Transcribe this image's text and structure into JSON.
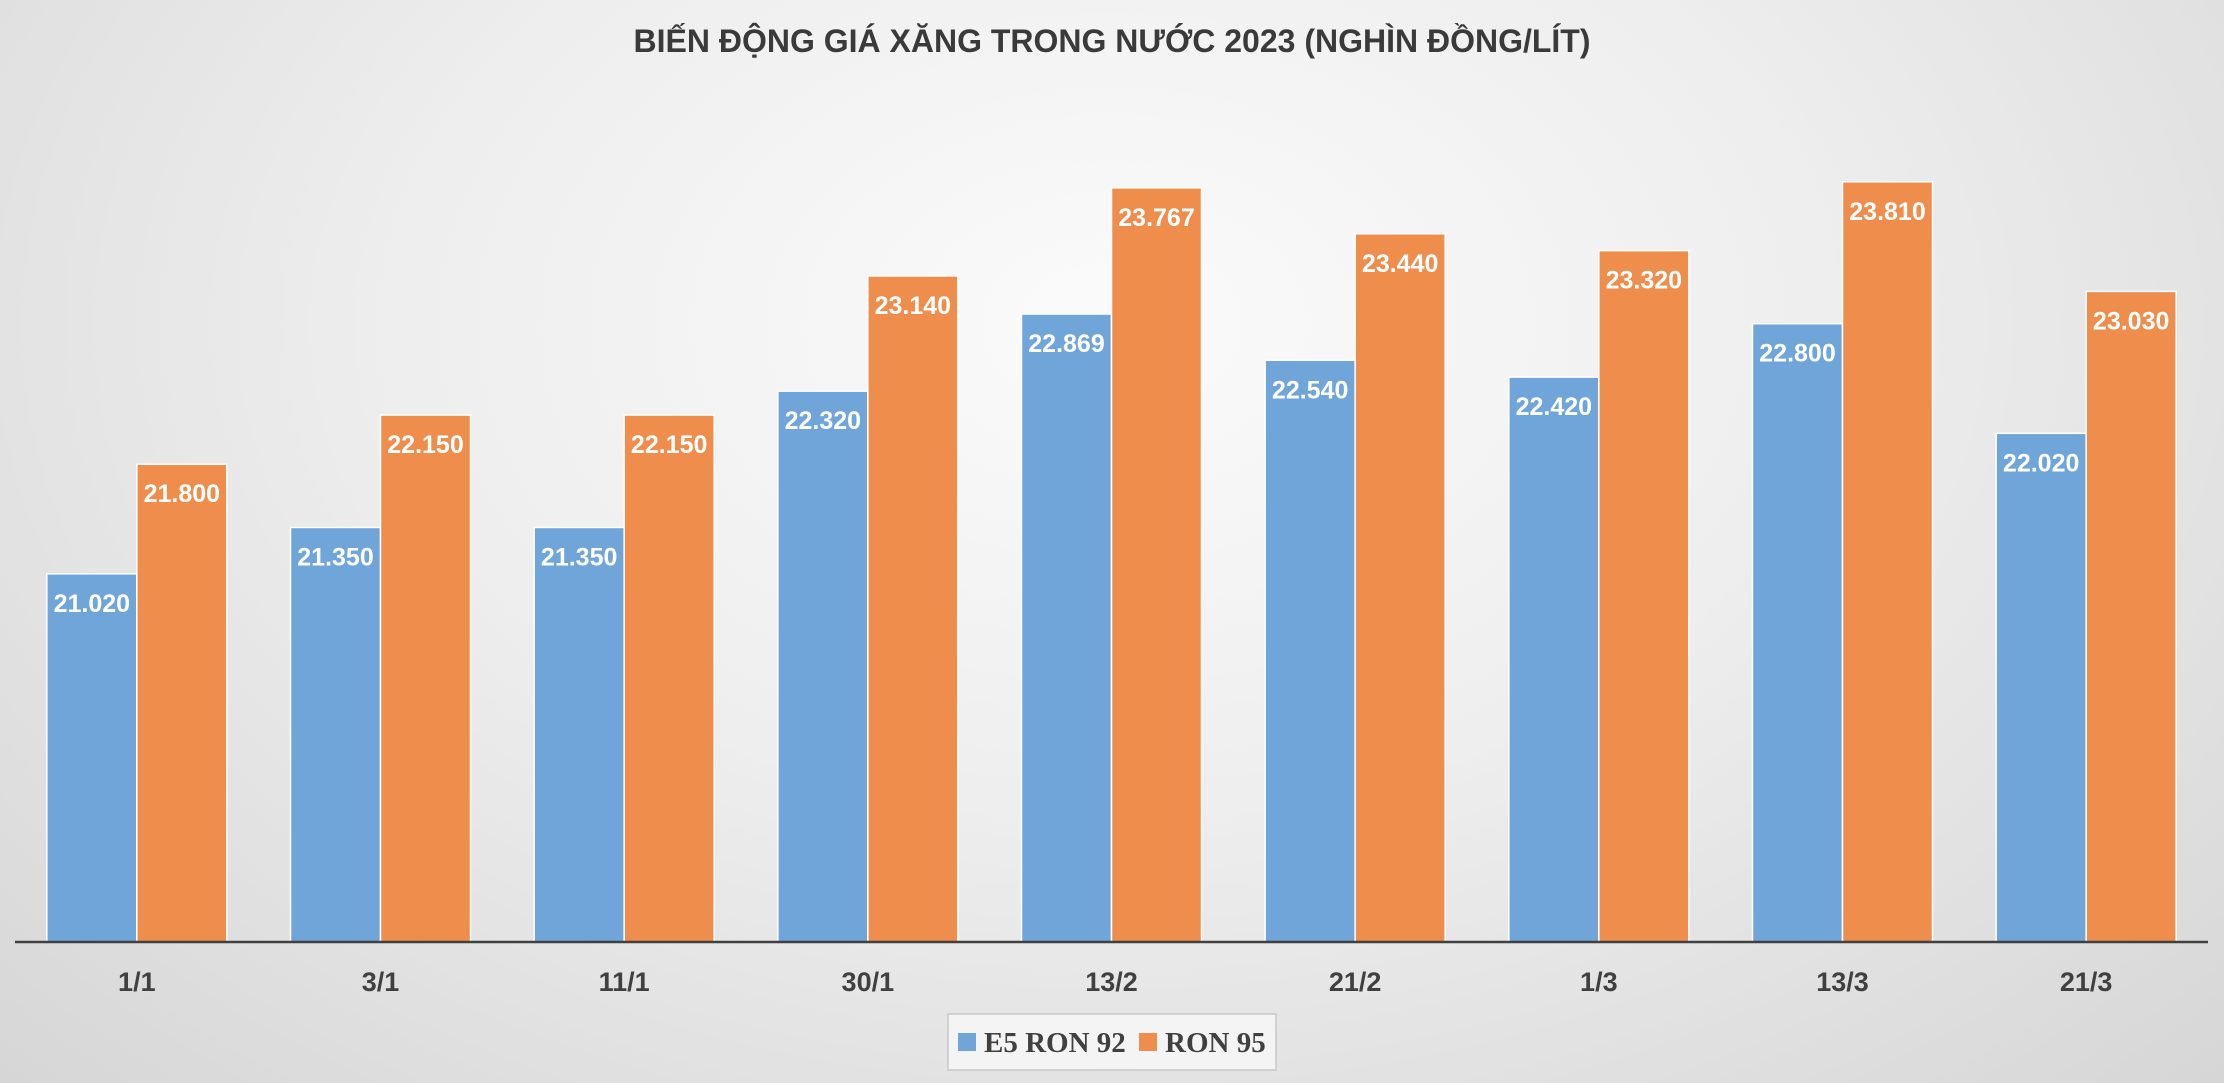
{
  "chart_data": {
    "type": "bar",
    "title": "BIẾN ĐỘNG GIÁ XĂNG TRONG NƯỚC 2023 (NGHÌN ĐỒNG/LÍT)",
    "categories": [
      "1/1",
      "3/1",
      "11/1",
      "30/1",
      "13/2",
      "21/2",
      "1/3",
      "13/3",
      "21/3"
    ],
    "series": [
      {
        "name": "E5 RON 92",
        "color": "#6fa5d8",
        "values": [
          21.02,
          21.35,
          21.35,
          22.32,
          22.869,
          22.54,
          22.42,
          22.8,
          22.02
        ],
        "labels": [
          "21.020",
          "21.350",
          "21.350",
          "22.320",
          "22.869",
          "22.540",
          "22.420",
          "22.800",
          "22.020"
        ]
      },
      {
        "name": "RON 95",
        "color": "#ee8d4c",
        "values": [
          21.8,
          22.15,
          22.15,
          23.14,
          23.767,
          23.44,
          23.32,
          23.81,
          23.03
        ],
        "labels": [
          "21.800",
          "22.150",
          "22.150",
          "23.140",
          "23.767",
          "23.440",
          "23.320",
          "23.810",
          "23.030"
        ]
      }
    ],
    "ylim": [
      18.4,
      24.2
    ],
    "xlabel": "",
    "ylabel": "",
    "grid": false,
    "legend": "bottom"
  }
}
